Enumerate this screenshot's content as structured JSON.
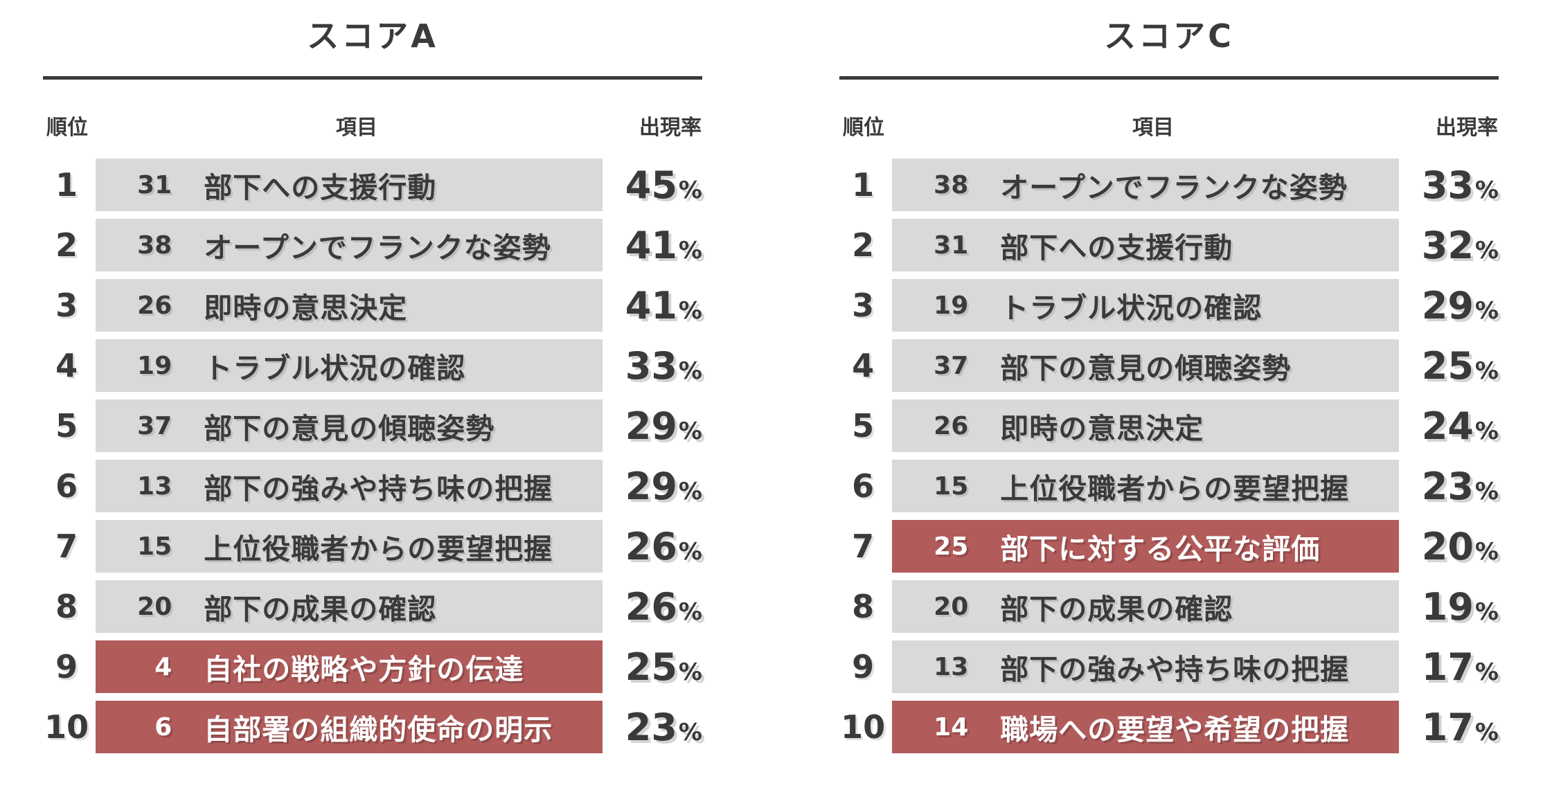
{
  "unit": "%",
  "colors": {
    "text": "#3a3a3a",
    "bar_gray": "#d9d9d9",
    "highlight_red": "#b25b5b",
    "highlight_text": "#ffffff"
  },
  "chart_data": [
    {
      "type": "table",
      "title": "スコアA",
      "columns": {
        "rank": "順位",
        "item": "項目",
        "rate": "出現率"
      },
      "rate_unit": "%",
      "rows": [
        {
          "rank": "1",
          "num": "31",
          "label": "部下への支援行動",
          "rate": 45,
          "highlight": false
        },
        {
          "rank": "2",
          "num": "38",
          "label": "オープンでフランクな姿勢",
          "rate": 41,
          "highlight": false
        },
        {
          "rank": "3",
          "num": "26",
          "label": "即時の意思決定",
          "rate": 41,
          "highlight": false
        },
        {
          "rank": "4",
          "num": "19",
          "label": "トラブル状況の確認",
          "rate": 33,
          "highlight": false
        },
        {
          "rank": "5",
          "num": "37",
          "label": "部下の意見の傾聴姿勢",
          "rate": 29,
          "highlight": false
        },
        {
          "rank": "6",
          "num": "13",
          "label": "部下の強みや持ち味の把握",
          "rate": 29,
          "highlight": false
        },
        {
          "rank": "7",
          "num": "15",
          "label": "上位役職者からの要望把握",
          "rate": 26,
          "highlight": false
        },
        {
          "rank": "8",
          "num": "20",
          "label": "部下の成果の確認",
          "rate": 26,
          "highlight": false
        },
        {
          "rank": "9",
          "num": "4",
          "label": "自社の戦略や方針の伝達",
          "rate": 25,
          "highlight": true
        },
        {
          "rank": "10",
          "num": "6",
          "label": "自部署の組織的使命の明示",
          "rate": 23,
          "highlight": true
        }
      ]
    },
    {
      "type": "table",
      "title": "スコアC",
      "columns": {
        "rank": "順位",
        "item": "項目",
        "rate": "出現率"
      },
      "rate_unit": "%",
      "rows": [
        {
          "rank": "1",
          "num": "38",
          "label": "オープンでフランクな姿勢",
          "rate": 33,
          "highlight": false
        },
        {
          "rank": "2",
          "num": "31",
          "label": "部下への支援行動",
          "rate": 32,
          "highlight": false
        },
        {
          "rank": "3",
          "num": "19",
          "label": "トラブル状況の確認",
          "rate": 29,
          "highlight": false
        },
        {
          "rank": "4",
          "num": "37",
          "label": "部下の意見の傾聴姿勢",
          "rate": 25,
          "highlight": false
        },
        {
          "rank": "5",
          "num": "26",
          "label": "即時の意思決定",
          "rate": 24,
          "highlight": false
        },
        {
          "rank": "6",
          "num": "15",
          "label": "上位役職者からの要望把握",
          "rate": 23,
          "highlight": false
        },
        {
          "rank": "7",
          "num": "25",
          "label": "部下に対する公平な評価",
          "rate": 20,
          "highlight": true
        },
        {
          "rank": "8",
          "num": "20",
          "label": "部下の成果の確認",
          "rate": 19,
          "highlight": false
        },
        {
          "rank": "9",
          "num": "13",
          "label": "部下の強みや持ち味の把握",
          "rate": 17,
          "highlight": false
        },
        {
          "rank": "10",
          "num": "14",
          "label": "職場への要望や希望の把握",
          "rate": 17,
          "highlight": true
        }
      ]
    }
  ]
}
